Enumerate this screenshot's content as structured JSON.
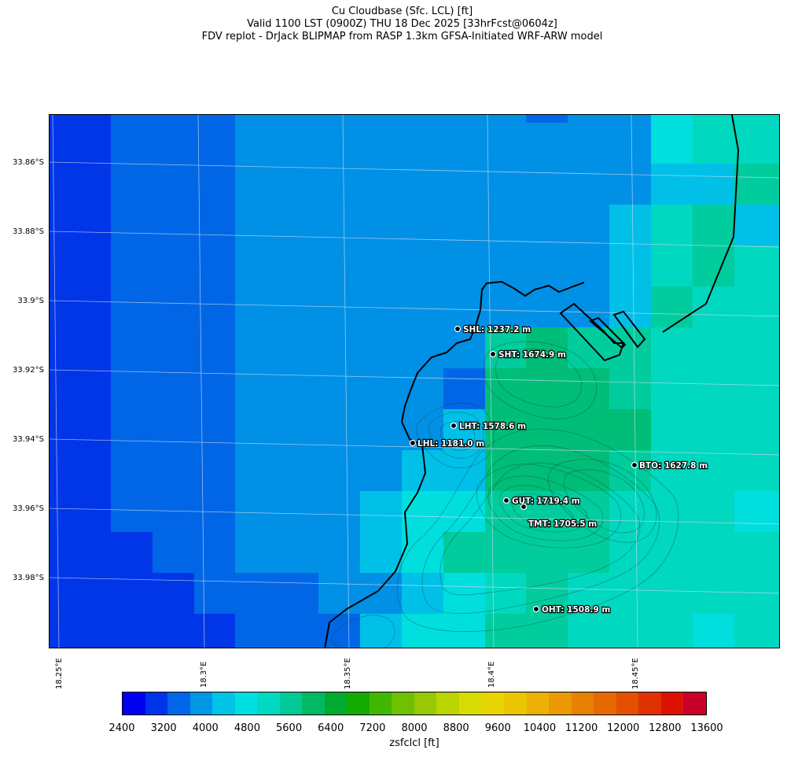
{
  "title": {
    "line1": "Cu Cloudbase (Sfc. LCL) [ft]",
    "line2": "Valid 1100 LST (0900Z) THU 18 Dec 2025 [33hrFcst@0604z]",
    "line3": "FDV replot - DrJack BLIPMAP from RASP 1.3km GFSA-Initiated WRF-ARW model"
  },
  "lat_labels": [
    "33.86°S",
    "33.88°S",
    "33.9°S",
    "33.92°S",
    "33.94°S",
    "33.96°S",
    "33.98°S"
  ],
  "lon_labels": [
    "18.25°E",
    "18.3°E",
    "18.35°E",
    "18.4°E",
    "18.45°E"
  ],
  "stations": [
    {
      "id": "SHL",
      "label": "SHL: 1237.2 m"
    },
    {
      "id": "SHT",
      "label": "SHT: 1674.9 m"
    },
    {
      "id": "LHT",
      "label": "LHT: 1578.6 m"
    },
    {
      "id": "LHL",
      "label": "LHL: 1181.0 m"
    },
    {
      "id": "BTO",
      "label": "BTO: 1627.8 m"
    },
    {
      "id": "GUT",
      "label": "GUT: 1719.4 m"
    },
    {
      "id": "TMT",
      "label": "TMT: 1705.5 m"
    },
    {
      "id": "OHT",
      "label": "OHT: 1508.9 m"
    }
  ],
  "colorbar": {
    "label": "zsfclcl [ft]",
    "ticks": [
      "2400",
      "3200",
      "4000",
      "4800",
      "5600",
      "6400",
      "7200",
      "8000",
      "8800",
      "9600",
      "10400",
      "11200",
      "12000",
      "12800",
      "13600"
    ],
    "colors": [
      "#0000f0",
      "#0034e8",
      "#0066e8",
      "#0096e6",
      "#00c4e8",
      "#00e0e0",
      "#00d8c0",
      "#00c896",
      "#00b964",
      "#00aa30",
      "#14aa00",
      "#40b800",
      "#6ec000",
      "#98c800",
      "#bcd400",
      "#d8dc00",
      "#e8d400",
      "#ecc400",
      "#ecb000",
      "#ea9a00",
      "#e88000",
      "#e86800",
      "#e45000",
      "#e03200",
      "#dc1200",
      "#c8002a"
    ]
  }
}
